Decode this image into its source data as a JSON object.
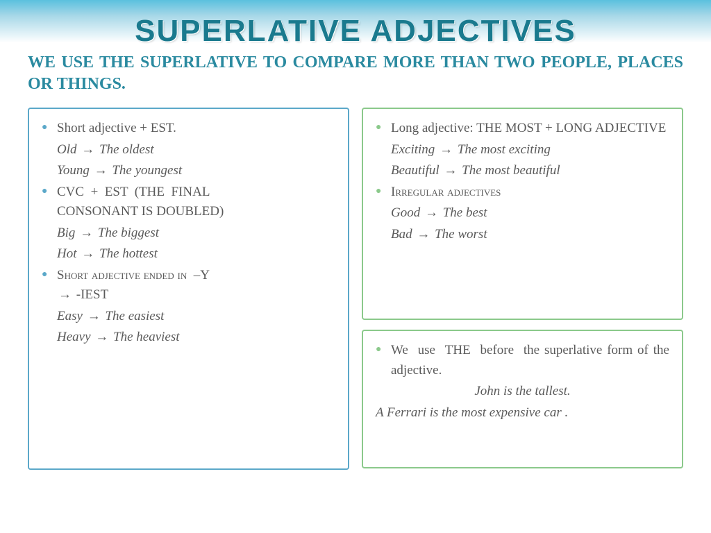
{
  "title": "SUPERLATIVE ADJECTIVES",
  "subtitle_part1": "We use the Superlative to compare more than two people, places or things.",
  "left": {
    "rule1": "Short adjective + EST.",
    "ex1a": "Old",
    "ex1a_r": "The oldest",
    "ex1b": "Young",
    "ex1b_r": "The youngest",
    "rule2": "CVC + EST (the final consonant is doubled)",
    "ex2a": "Big",
    "ex2a_r": "The biggest",
    "ex2b": "Hot",
    "ex2b_r": "The hottest",
    "rule3a": "Short adjective ended in –Y",
    "rule3b": "-IEST",
    "ex3a": "Easy",
    "ex3a_r": "The easiest",
    "ex3b": "Heavy",
    "ex3b_r": "The heaviest"
  },
  "right_top": {
    "rule1": "Long adjective: THE MOST + long adjective",
    "ex1a": "Exciting",
    "ex1a_r": "The most exciting",
    "ex1b": "Beautiful",
    "ex1b_r": "The most beautiful",
    "rule2": "Irregular adjectives",
    "ex2a": "Good",
    "ex2a_r": "The best",
    "ex2b": "Bad",
    "ex2b_r": "The worst"
  },
  "right_bottom": {
    "rule": "We use THE before the superlative form of the adjective.",
    "ex1": "John is the tallest.",
    "ex2": "A Ferrari is the most expensive car ."
  },
  "arrow": "→",
  "colors": {
    "title": "#1a7a8e",
    "subtitle": "#2a8aa0",
    "text": "#5a5a5a",
    "blue_border": "#5ba8c9",
    "green_border": "#8bc98b"
  }
}
